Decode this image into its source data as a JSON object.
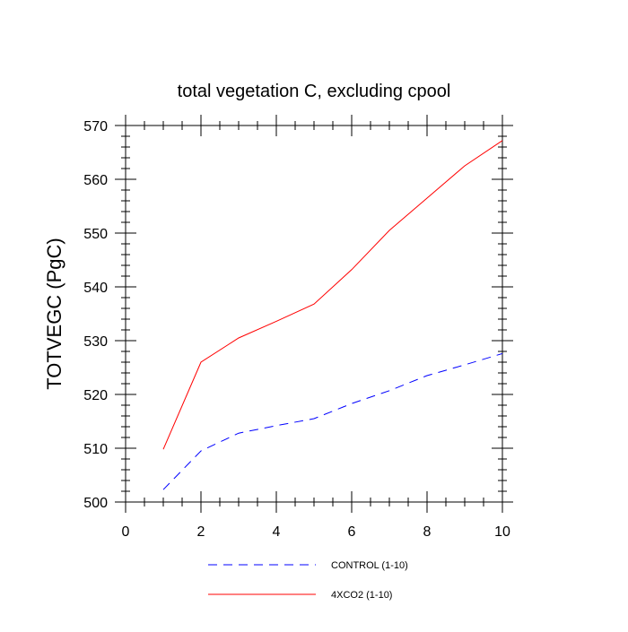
{
  "chart_data": {
    "type": "line",
    "title": "total vegetation C, excluding cpool",
    "xlabel": "",
    "ylabel": "TOTVEGC  (PgC)",
    "xlim": [
      0,
      10
    ],
    "ylim": [
      500,
      570
    ],
    "xticks": [
      0,
      2,
      4,
      6,
      8,
      10
    ],
    "yticks": [
      500,
      510,
      520,
      530,
      540,
      550,
      560,
      570
    ],
    "grid": false,
    "legend_position": "bottom",
    "series": [
      {
        "name": "CONTROL (1-10)",
        "color": "#0000ff",
        "style": "dashed",
        "x": [
          1,
          2,
          3,
          4,
          5,
          6,
          7,
          8,
          9,
          10
        ],
        "values": [
          502.3,
          509.5,
          512.8,
          514.2,
          515.5,
          518.3,
          520.7,
          523.5,
          525.5,
          527.6
        ]
      },
      {
        "name": "4XCO2 (1-10)",
        "color": "#ff0000",
        "style": "solid",
        "x": [
          1,
          2,
          3,
          4,
          5,
          6,
          7,
          8,
          9,
          10
        ],
        "values": [
          509.8,
          526.0,
          530.5,
          533.6,
          536.8,
          543.2,
          550.5,
          556.5,
          562.5,
          567.2
        ]
      }
    ]
  }
}
